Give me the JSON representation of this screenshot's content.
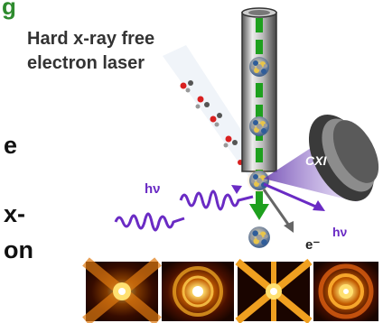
{
  "title_fragment": "g",
  "laser_label_line1": "Hard x-ray free",
  "laser_label_line2": "electron laser",
  "left_fragment_1": "e",
  "left_fragment_2": "x-",
  "left_fragment_3": "on",
  "detector_label": "CXI",
  "photon_in_label": "hν",
  "photon_out_label": "hν",
  "electron_label": "e⁻",
  "colors": {
    "title_green": "#2e8b2e",
    "beam_green": "#1ea01e",
    "photon_purple": "#6a2bc4",
    "cone_purple": "#b89ae0",
    "detector_dark": "#3a3a3a"
  },
  "icons": {
    "detector": "detector-icon",
    "nanocluster": "nanocluster-icon",
    "molecule": "molecule-icon",
    "diffraction": "diffraction-pattern-icon"
  }
}
